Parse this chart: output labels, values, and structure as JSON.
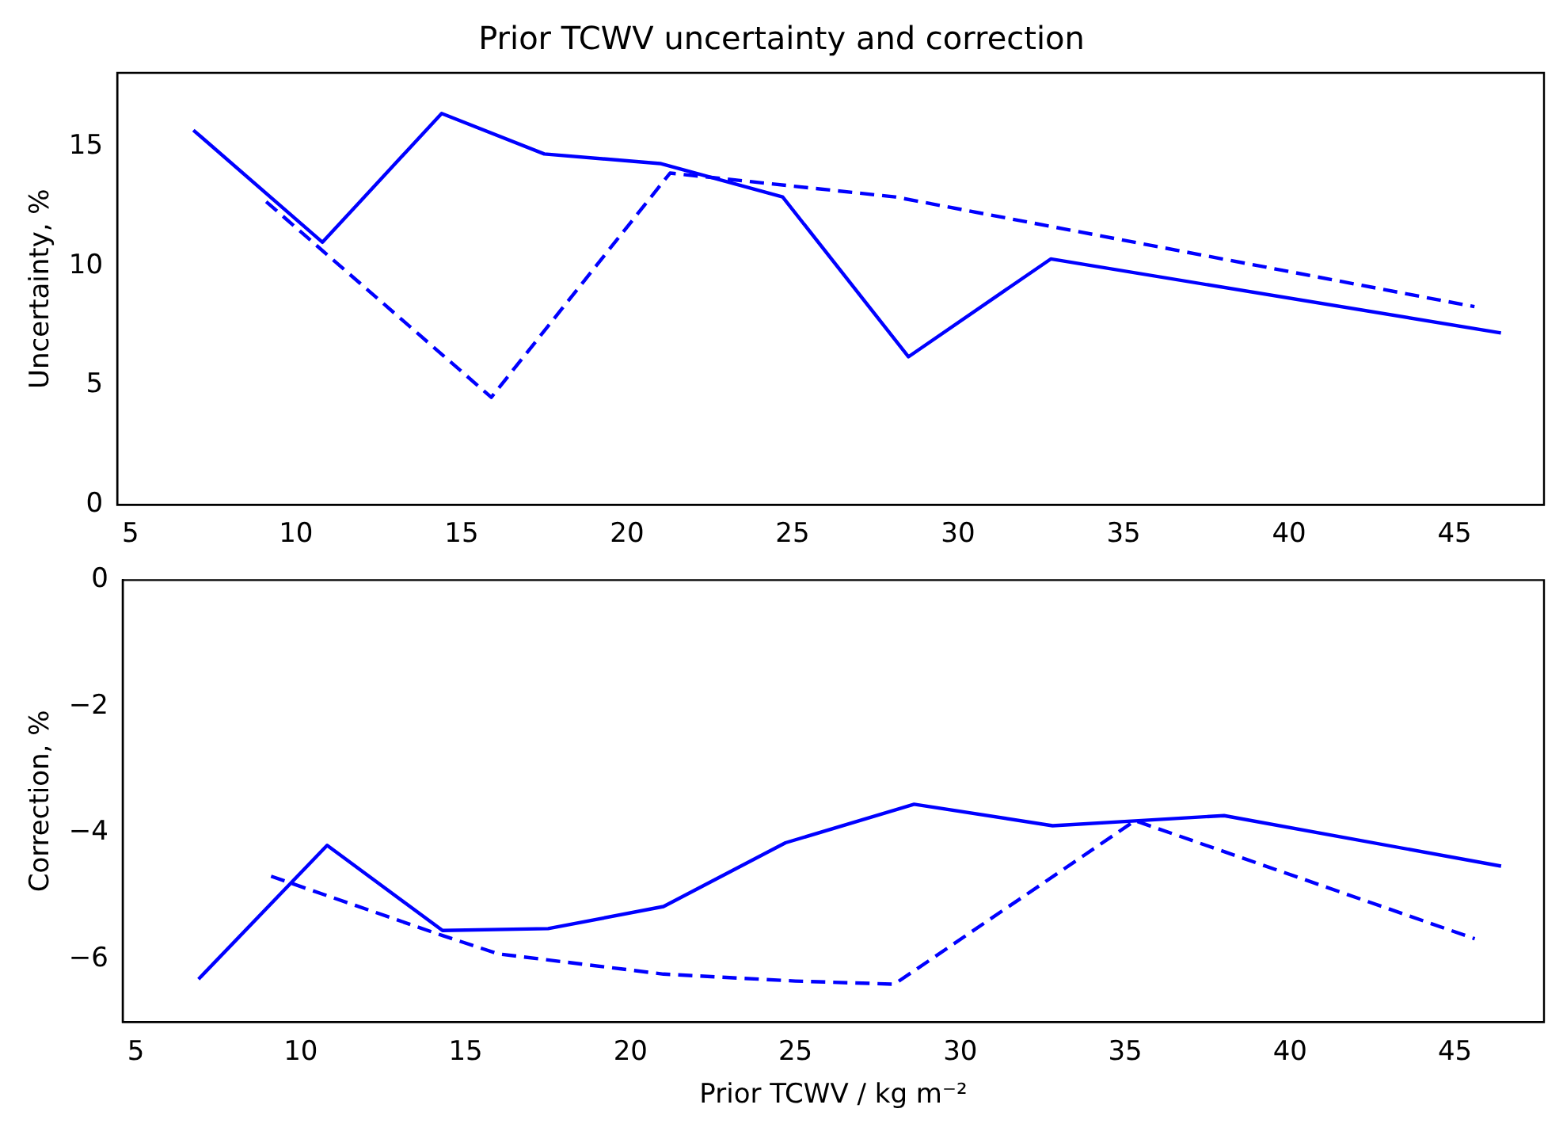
{
  "chart_data": [
    {
      "type": "line",
      "title": "Prior TCWV uncertainty and correction",
      "ylabel": "Uncertainty, %",
      "xlim": [
        4.6,
        47.7
      ],
      "xticks": [
        5,
        10,
        15,
        20,
        25,
        30,
        35,
        40,
        45
      ],
      "ylim": [
        0,
        18.1
      ],
      "yticks": [
        0,
        5,
        10,
        15
      ],
      "grid": false,
      "legend": false,
      "series": [
        {
          "color": "#0000ff",
          "line_style": "solid",
          "x": [
            6.9,
            10.8,
            14.4,
            17.5,
            21.0,
            24.7,
            28.5,
            32.8,
            46.4
          ],
          "values": [
            15.7,
            11.0,
            16.4,
            14.7,
            14.3,
            12.9,
            6.2,
            10.3,
            7.2
          ]
        },
        {
          "color": "#0000ff",
          "line_style": "dashed",
          "x": [
            9.1,
            15.9,
            21.3,
            28.1,
            45.6
          ],
          "values": [
            12.7,
            4.5,
            13.9,
            12.9,
            8.3
          ]
        }
      ]
    },
    {
      "type": "line",
      "xlabel": "Prior TCWV / kg m⁻²",
      "ylabel": "Correction, %",
      "xlim": [
        4.6,
        47.7
      ],
      "xticks": [
        5,
        10,
        15,
        20,
        25,
        30,
        35,
        40,
        45
      ],
      "ylim": [
        -7.0,
        0
      ],
      "yticks": [
        {
          "value": -6,
          "label": "−6"
        },
        {
          "value": -4,
          "label": "−4"
        },
        {
          "value": -2,
          "label": "−2"
        },
        0
      ],
      "grid": false,
      "legend": false,
      "series": [
        {
          "color": "#0000ff",
          "line_style": "solid",
          "x": [
            6.9,
            10.8,
            14.3,
            17.5,
            21.0,
            24.7,
            28.6,
            32.8,
            35.4,
            38.0,
            46.4
          ],
          "values": [
            -6.32,
            -4.2,
            -5.55,
            -5.52,
            -5.17,
            -4.16,
            -3.55,
            -3.89,
            -3.81,
            -3.73,
            -4.53
          ]
        },
        {
          "color": "#0000ff",
          "line_style": "dashed",
          "x": [
            9.1,
            14.3,
            16.0,
            21.0,
            25.0,
            28.0,
            35.3,
            45.6
          ],
          "values": [
            -4.69,
            -5.63,
            -5.92,
            -6.24,
            -6.35,
            -6.4,
            -3.81,
            -5.68
          ]
        }
      ]
    }
  ]
}
